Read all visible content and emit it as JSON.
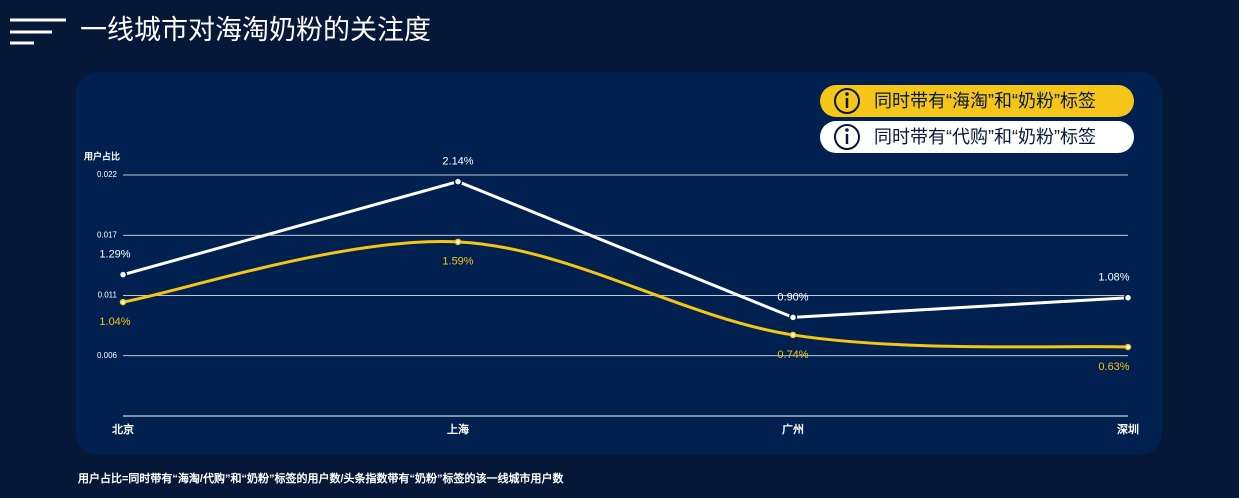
{
  "chart_data": {
    "type": "line",
    "title": "一线城市对海淘奶粉的关注度",
    "y_label": "用户占比",
    "footnote": "用户占比=同时带有“海淘/代购”和“奶粉”标签的用户数/头条指数带有“奶粉”标签的该一线城市用户数",
    "categories": [
      "北京",
      "上海",
      "广州",
      "深圳"
    ],
    "series": [
      {
        "name": "同时带有“海淘”和“奶粉”标签",
        "color": "#f5c518",
        "smooth": true,
        "label_side": "below",
        "values": [
          0.0104,
          0.0159,
          0.0074,
          0.0063
        ],
        "value_labels": [
          "1.04%",
          "1.59%",
          "0.74%",
          "0.63%"
        ]
      },
      {
        "name": "同时带有“代购”和“奶粉”标签",
        "color": "#ffffff",
        "smooth": false,
        "label_side": "above",
        "values": [
          0.0129,
          0.0214,
          0.009,
          0.0108
        ],
        "value_labels": [
          "1.29%",
          "2.14%",
          "0.90%",
          "1.08%"
        ]
      }
    ],
    "ylim": [
      0,
      0.022
    ],
    "yticks": [
      0.022,
      {
        "value": 0.0165,
        "label": "0.017"
      },
      0.011,
      {
        "value": 0.0055,
        "label": "0.006"
      }
    ],
    "grid": true,
    "legend": "top-right"
  }
}
